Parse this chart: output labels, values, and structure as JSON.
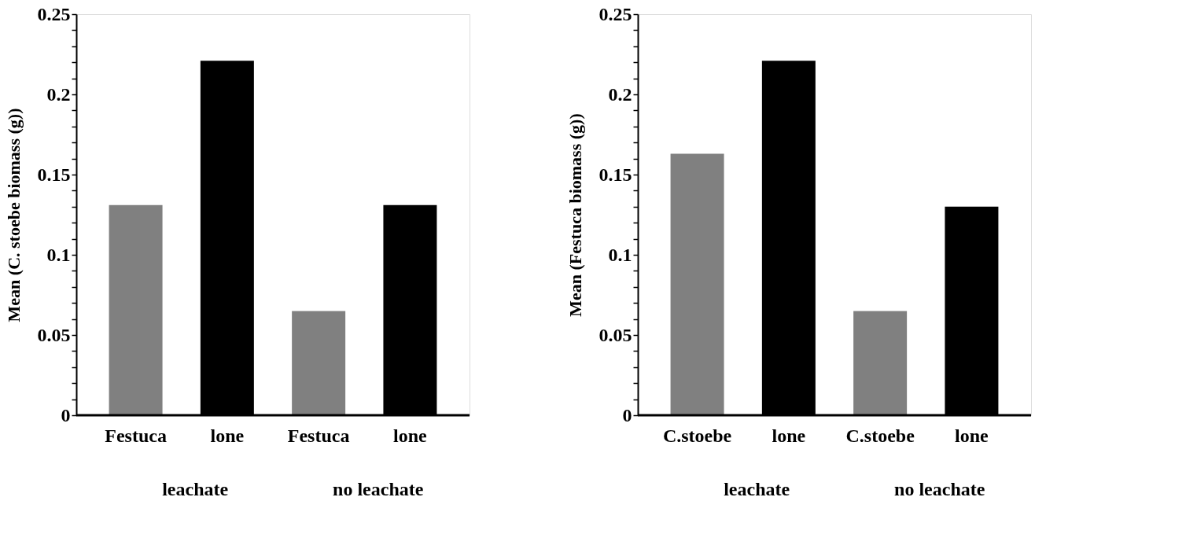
{
  "chart_data": [
    {
      "type": "bar",
      "ylabel": "Mean (C. stoebe biomass (g))",
      "categories": [
        "Festuca",
        "lone",
        "Festuca",
        "lone"
      ],
      "values": [
        0.131,
        0.221,
        0.065,
        0.131
      ],
      "colors": [
        "#808080",
        "#000000",
        "#808080",
        "#000000"
      ],
      "ylim": [
        0,
        0.25
      ],
      "yticks": [
        0,
        {
          "value": 0.01,
          "label": null
        },
        {
          "value": 0.02,
          "label": null
        },
        {
          "value": 0.03,
          "label": null
        },
        {
          "value": 0.04,
          "label": null
        },
        0.05,
        {
          "value": 0.06,
          "label": null
        },
        {
          "value": 0.07,
          "label": null
        },
        {
          "value": 0.08,
          "label": null
        },
        {
          "value": 0.09,
          "label": null
        },
        0.1,
        {
          "value": 0.11,
          "label": null
        },
        {
          "value": 0.12,
          "label": null
        },
        {
          "value": 0.13,
          "label": null
        },
        {
          "value": 0.14,
          "label": null
        },
        0.15,
        {
          "value": 0.16,
          "label": null
        },
        {
          "value": 0.17,
          "label": null
        },
        {
          "value": 0.18,
          "label": null
        },
        {
          "value": 0.19,
          "label": null
        },
        0.2,
        {
          "value": 0.21,
          "label": null
        },
        {
          "value": 0.22,
          "label": null
        },
        {
          "value": 0.23,
          "label": null
        },
        {
          "value": 0.24,
          "label": null
        },
        0.25
      ],
      "annotations": [
        "leachate",
        "no leachate"
      ],
      "grid": false
    },
    {
      "type": "bar",
      "ylabel": "Mean (Festuca biomass (g))",
      "categories": [
        "C.stoebe",
        "lone",
        "C.stoebe",
        "lone"
      ],
      "values": [
        0.163,
        0.221,
        0.065,
        0.13
      ],
      "colors": [
        "#808080",
        "#000000",
        "#808080",
        "#000000"
      ],
      "ylim": [
        0,
        0.25
      ],
      "yticks": [
        0,
        {
          "value": 0.01,
          "label": null
        },
        {
          "value": 0.02,
          "label": null
        },
        {
          "value": 0.03,
          "label": null
        },
        {
          "value": 0.04,
          "label": null
        },
        0.05,
        {
          "value": 0.06,
          "label": null
        },
        {
          "value": 0.07,
          "label": null
        },
        {
          "value": 0.08,
          "label": null
        },
        {
          "value": 0.09,
          "label": null
        },
        0.1,
        {
          "value": 0.11,
          "label": null
        },
        {
          "value": 0.12,
          "label": null
        },
        {
          "value": 0.13,
          "label": null
        },
        {
          "value": 0.14,
          "label": null
        },
        0.15,
        {
          "value": 0.16,
          "label": null
        },
        {
          "value": 0.17,
          "label": null
        },
        {
          "value": 0.18,
          "label": null
        },
        {
          "value": 0.19,
          "label": null
        },
        0.2,
        {
          "value": 0.21,
          "label": null
        },
        {
          "value": 0.22,
          "label": null
        },
        {
          "value": 0.23,
          "label": null
        },
        {
          "value": 0.24,
          "label": null
        },
        0.25
      ],
      "annotations": [
        "leachate",
        "no leachate"
      ],
      "grid": false
    }
  ]
}
